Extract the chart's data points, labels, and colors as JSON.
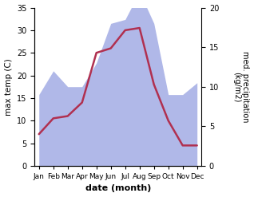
{
  "months": [
    "Jan",
    "Feb",
    "Mar",
    "Apr",
    "May",
    "Jun",
    "Jul",
    "Aug",
    "Sep",
    "Oct",
    "Nov",
    "Dec"
  ],
  "month_positions": [
    0,
    1,
    2,
    3,
    4,
    5,
    6,
    7,
    8,
    9,
    10,
    11
  ],
  "temperature": [
    7.0,
    10.5,
    11.0,
    14.0,
    25.0,
    26.0,
    30.0,
    30.5,
    18.0,
    10.0,
    4.5,
    4.5
  ],
  "precipitation": [
    9.0,
    12.0,
    10.0,
    10.0,
    13.0,
    18.0,
    18.5,
    22.0,
    18.0,
    9.0,
    9.0,
    10.5
  ],
  "temp_color": "#b03050",
  "precip_color": "#b0b8e8",
  "bg_color": "#ffffff",
  "xlabel": "date (month)",
  "ylabel_left": "max temp (C)",
  "ylabel_right": "med. precipitation\n(kg/m2)",
  "ylim_left": [
    0,
    35
  ],
  "ylim_right": [
    0,
    20
  ],
  "yticks_left": [
    0,
    5,
    10,
    15,
    20,
    25,
    30,
    35
  ],
  "yticks_right": [
    0,
    5,
    10,
    15,
    20
  ],
  "precip_to_temp_scale": 1.75
}
